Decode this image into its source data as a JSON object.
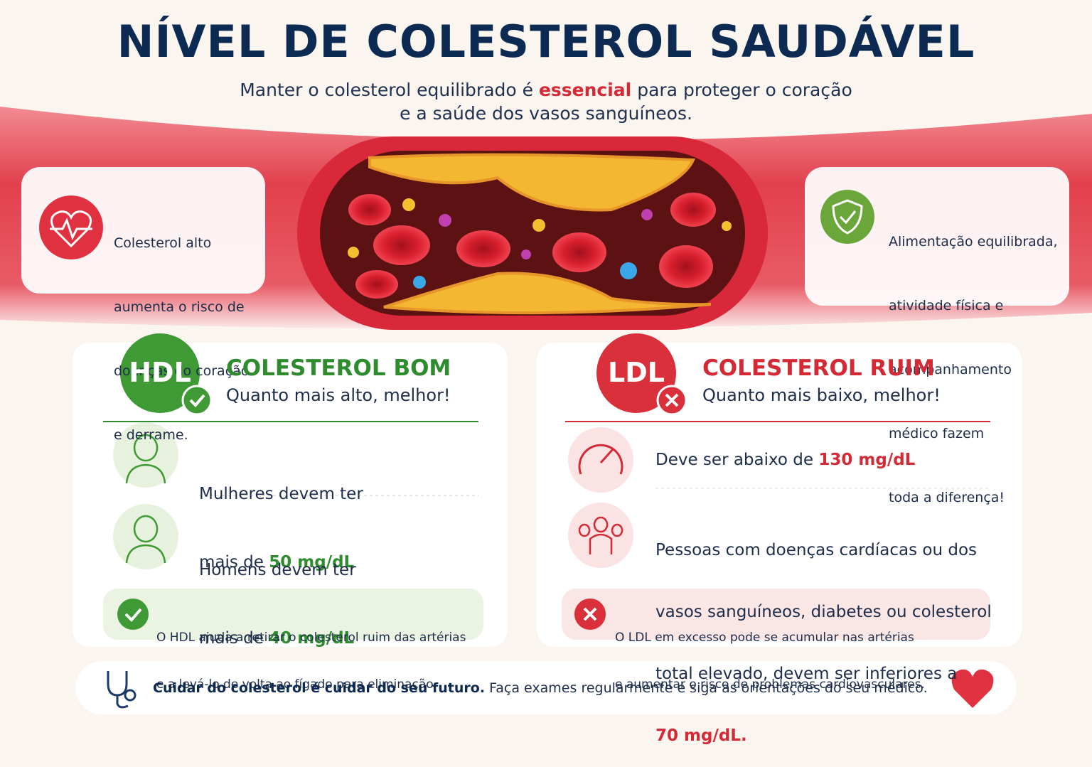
{
  "header": {
    "title": "NÍVEL DE COLESTEROL SAUDÁVEL",
    "subtitle": {
      "before": "Manter o colesterol equilibrado é ",
      "highlight": "essencial",
      "after": " para proteger o coração",
      "line2": "e a saúde dos vasos sanguíneos."
    }
  },
  "left_note": {
    "lines": [
      "Colesterol alto",
      "aumenta o risco de",
      "doenças do coração",
      "e derrame."
    ]
  },
  "right_note": {
    "lines": [
      "Alimentação equilibrada,",
      "atividade física e",
      "acompanhamento",
      "médico fazem",
      "toda a diferença!"
    ]
  },
  "hdl": {
    "badge": "HDL",
    "title": "COLESTEROL BOM",
    "subtitle": "Quanto mais alto, melhor!",
    "items": [
      {
        "line1": "Mulheres devem ter",
        "prefix": "mais de ",
        "value": "50 mg/dL"
      },
      {
        "line1": "Homens devem ter",
        "prefix": "mais de ",
        "value": "40 mg/dL"
      }
    ],
    "note": [
      "O HDL ajuda a retirar o colesterol ruim das artérias",
      "e a levá-lo de volta ao fígado para eliminação."
    ]
  },
  "ldl": {
    "badge": "LDL",
    "title": "COLESTEROL RUIM",
    "subtitle": "Quanto mais baixo, melhor!",
    "items": [
      {
        "prefix": "Deve ser abaixo de ",
        "value": "130 mg/dL"
      },
      {
        "lines": [
          "Pessoas com doenças cardíacas ou dos",
          "vasos sanguíneos, diabetes ou colesterol",
          "total elevado, devem ser inferiores a"
        ],
        "value": "70 mg/dL."
      }
    ],
    "note": [
      "O LDL em excesso pode se acumular nas artérias",
      "e aumentar o risco de problemas cardiovasculares."
    ]
  },
  "footer": {
    "bold": "Cuidar do colesterol é cuidar do seu futuro.",
    "text": " Faça exames regularmente e siga as orientações do seu médico."
  }
}
